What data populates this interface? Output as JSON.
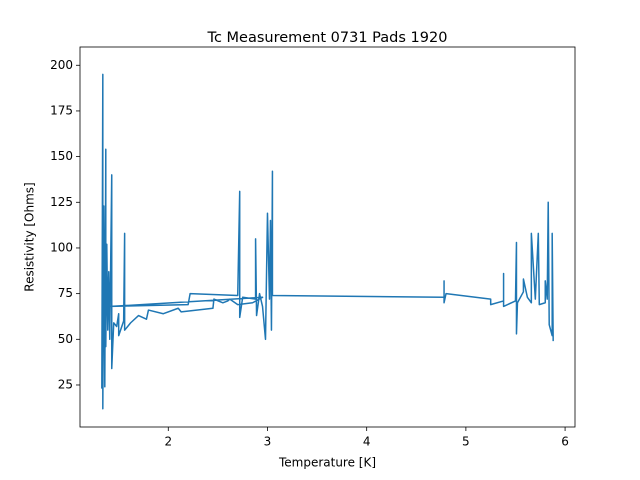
{
  "chart_data": {
    "type": "line",
    "title": "Tc Measurement 0731 Pads 1920",
    "x_label": "Temperature [K]",
    "y_label": "Resistivity [Ohms]",
    "xlim": [
      1.11,
      6.1
    ],
    "ylim": [
      2,
      210
    ],
    "xticks": [
      2,
      3,
      4,
      5,
      6
    ],
    "yticks": [
      25,
      50,
      75,
      100,
      125,
      150,
      175,
      200
    ],
    "series": [
      {
        "color": "#1f77b4",
        "x": [
          1.33,
          1.34,
          1.34,
          1.35,
          1.36,
          1.37,
          1.37,
          1.38,
          1.39,
          1.4,
          1.41,
          1.43,
          1.43,
          1.45,
          1.48,
          1.5,
          1.5,
          1.55,
          1.56,
          1.56,
          1.62,
          1.7,
          1.78,
          1.8,
          1.95,
          2.1,
          2.13,
          2.45,
          2.46,
          2.55,
          2.6,
          2.62,
          2.7,
          2.85,
          2.95,
          1.42,
          2.2,
          2.22,
          2.7,
          2.72,
          2.72,
          2.75,
          2.88,
          2.88,
          2.89,
          2.92,
          2.95,
          2.98,
          3.0,
          3.02,
          3.03,
          3.04,
          3.05,
          3.05,
          4.78,
          4.78,
          4.78,
          4.8,
          5.25,
          5.25,
          5.38,
          5.38,
          5.38,
          5.5,
          5.51,
          5.51,
          5.52,
          5.58,
          5.58,
          5.62,
          5.66,
          5.66,
          5.7,
          5.73,
          5.74,
          5.8,
          5.8,
          5.82,
          5.83,
          5.84,
          5.87,
          5.87,
          5.88
        ],
        "values": [
          23,
          195,
          12,
          123,
          24,
          154,
          46,
          102,
          55,
          87,
          50,
          140,
          34,
          59,
          57,
          64,
          52,
          60,
          108,
          55,
          59,
          63,
          61,
          66,
          64,
          67,
          65,
          67,
          72,
          70,
          71,
          72,
          69,
          70,
          73,
          68,
          69,
          75,
          74,
          131,
          62,
          73,
          72,
          105,
          63,
          75,
          68,
          50,
          119,
          72,
          115,
          55,
          142,
          74,
          73,
          82,
          70,
          75,
          72,
          69,
          71,
          86,
          68,
          71,
          103,
          53,
          70,
          76,
          83,
          73,
          70,
          108,
          72,
          108,
          69,
          70,
          82,
          72,
          125,
          58,
          52,
          108,
          49
        ]
      }
    ]
  }
}
